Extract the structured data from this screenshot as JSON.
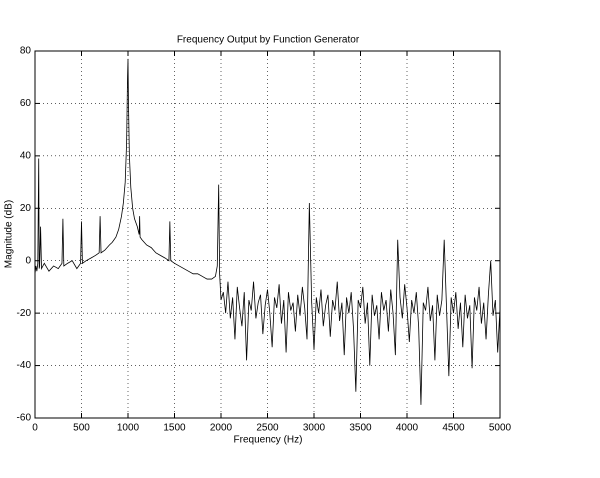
{
  "chart_data": {
    "type": "line",
    "title": "Frequency Output by Function Generator",
    "x_label": "Frequency (Hz)",
    "y_label": "Magnitude (dB)",
    "color": "#000000",
    "grid": true,
    "xlim": [
      0,
      5000
    ],
    "ylim": [
      -60,
      80
    ],
    "xticks": [
      0,
      500,
      1000,
      1500,
      2000,
      2500,
      3000,
      3500,
      4000,
      4500,
      5000
    ],
    "yticks": [
      -60,
      -40,
      -20,
      0,
      20,
      40,
      60,
      80
    ],
    "x": [
      0,
      10,
      20,
      30,
      40,
      45,
      50,
      60,
      70,
      100,
      150,
      200,
      250,
      290,
      300,
      310,
      350,
      400,
      450,
      490,
      500,
      510,
      550,
      600,
      650,
      690,
      700,
      710,
      750,
      800,
      830,
      850,
      870,
      900,
      930,
      950,
      970,
      985,
      995,
      1000,
      1005,
      1015,
      1030,
      1050,
      1070,
      1100,
      1120,
      1125,
      1130,
      1150,
      1200,
      1250,
      1300,
      1350,
      1400,
      1440,
      1450,
      1460,
      1500,
      1550,
      1600,
      1650,
      1700,
      1750,
      1800,
      1850,
      1900,
      1940,
      1960,
      1975,
      1985,
      2000,
      2025,
      2050,
      2075,
      2100,
      2125,
      2150,
      2175,
      2200,
      2225,
      2250,
      2275,
      2300,
      2325,
      2350,
      2375,
      2400,
      2425,
      2450,
      2475,
      2500,
      2525,
      2550,
      2575,
      2600,
      2625,
      2650,
      2675,
      2700,
      2725,
      2750,
      2775,
      2800,
      2825,
      2850,
      2875,
      2900,
      2925,
      2950,
      2975,
      3000,
      3025,
      3050,
      3075,
      3100,
      3125,
      3150,
      3175,
      3200,
      3225,
      3250,
      3275,
      3300,
      3325,
      3350,
      3375,
      3400,
      3425,
      3450,
      3475,
      3500,
      3525,
      3550,
      3575,
      3600,
      3625,
      3650,
      3675,
      3700,
      3725,
      3750,
      3775,
      3800,
      3825,
      3850,
      3875,
      3900,
      3925,
      3950,
      3975,
      4000,
      4025,
      4050,
      4075,
      4100,
      4125,
      4150,
      4175,
      4200,
      4225,
      4250,
      4275,
      4300,
      4325,
      4350,
      4375,
      4400,
      4425,
      4450,
      4475,
      4500,
      4525,
      4550,
      4575,
      4600,
      4625,
      4650,
      4675,
      4700,
      4725,
      4750,
      4775,
      4800,
      4825,
      4850,
      4875,
      4900,
      4925,
      4950,
      4975,
      5000
    ],
    "values": [
      -5,
      -2,
      -4,
      -1,
      39,
      -3,
      -2,
      13,
      -3,
      -1,
      -4,
      -2,
      -3,
      -1,
      16,
      -2,
      -1,
      0,
      -3,
      -1,
      15,
      -1,
      0,
      1,
      2,
      3,
      17,
      3,
      4,
      6,
      7,
      8,
      9,
      12,
      17,
      22,
      30,
      45,
      70,
      77,
      60,
      40,
      28,
      20,
      16,
      13,
      10,
      17,
      9,
      8,
      6,
      5,
      3,
      2,
      1,
      0,
      15,
      0,
      -1,
      -2,
      -3,
      -4,
      -5,
      -5,
      -6,
      -7,
      -7,
      -6,
      -2,
      29,
      -5,
      -15,
      -12,
      -20,
      -8,
      -22,
      -14,
      -30,
      -10,
      -18,
      -25,
      -12,
      -38,
      -15,
      -19,
      -8,
      -22,
      -16,
      -13,
      -28,
      -17,
      -11,
      -20,
      -33,
      -14,
      -18,
      -9,
      -24,
      -15,
      -35,
      -12,
      -19,
      -16,
      -27,
      -13,
      -21,
      -10,
      -18,
      -30,
      22,
      -16,
      -34,
      -14,
      -20,
      -11,
      -25,
      -17,
      -13,
      -29,
      -15,
      -19,
      -8,
      -23,
      -16,
      -36,
      -14,
      -20,
      -12,
      -26,
      -50,
      -15,
      -18,
      -10,
      -24,
      -16,
      -40,
      -13,
      -21,
      -17,
      -30,
      -12,
      -19,
      -15,
      -27,
      -11,
      -20,
      -36,
      8,
      -14,
      -22,
      -9,
      -18,
      -31,
      -15,
      -20,
      -12,
      -25,
      -55,
      -16,
      -19,
      -10,
      -23,
      -17,
      -38,
      -13,
      -21,
      -15,
      8,
      -18,
      -44,
      -14,
      -20,
      -12,
      -26,
      -16,
      -33,
      -13,
      -22,
      -17,
      -41,
      -14,
      -19,
      -10,
      -24,
      -16,
      -30,
      -13,
      0,
      -21,
      -15,
      -35,
      -18
    ]
  }
}
